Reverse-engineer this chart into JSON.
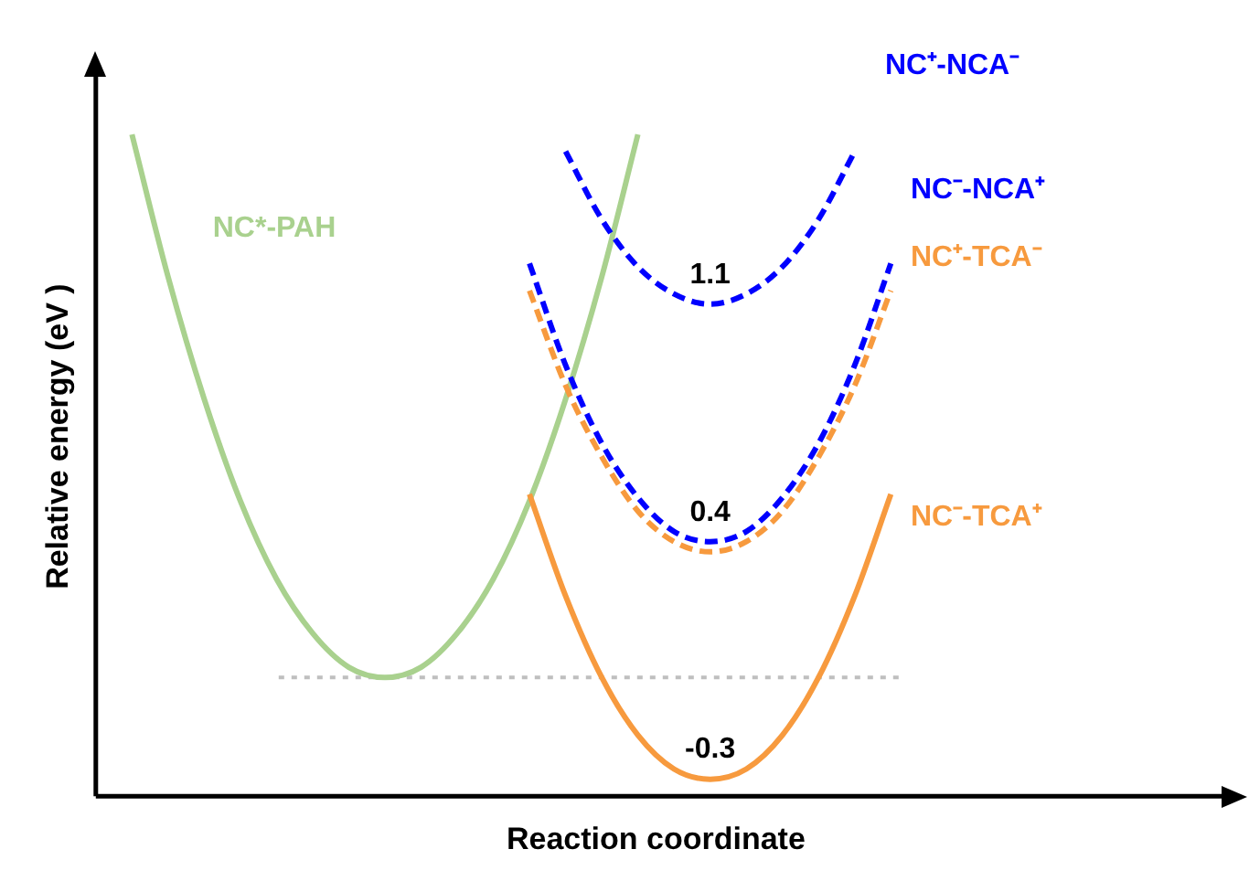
{
  "chart_data": {
    "type": "line",
    "xlabel": "Reaction coordinate",
    "ylabel": "Relative energy (eV )",
    "categories": [
      null,
      null,
      null,
      null,
      null,
      null,
      null,
      null,
      null,
      null,
      null,
      null,
      null,
      null,
      null,
      null,
      null,
      null,
      null,
      null,
      null,
      null,
      null,
      null,
      null,
      null,
      null,
      null,
      null,
      null,
      null,
      null
    ],
    "ylim": [
      -0.35,
      1.77
    ],
    "tick_labels": false,
    "grid": false,
    "legend": false,
    "marker": "none",
    "ref_lines": [
      {
        "axis": "y",
        "value": 0,
        "color": "#bfbfbf",
        "line_style": "dotted"
      }
    ],
    "series": [
      {
        "name": "NC*-PAH",
        "color": "#a9d18e",
        "line_style": "solid",
        "values": [
          null,
          1.6,
          1.18,
          0.82,
          0.52,
          0.29,
          0.13,
          0.03,
          0,
          0.03,
          0.13,
          0.29,
          0.52,
          0.82,
          1.18,
          1.6,
          null,
          null,
          null,
          null,
          null,
          null,
          null,
          null,
          null,
          null,
          null,
          null,
          null,
          null,
          null,
          null
        ]
      },
      {
        "name": "NC⁻-TCA⁺",
        "color": "#f79a3e",
        "line_style": "solid",
        "values": [
          null,
          null,
          null,
          null,
          null,
          null,
          null,
          null,
          null,
          null,
          null,
          null,
          0.54,
          0.24,
          0.0,
          -0.17,
          -0.27,
          -0.3,
          -0.27,
          -0.17,
          0.0,
          0.24,
          0.54,
          null,
          null,
          null,
          null,
          null,
          null,
          null,
          null,
          null
        ],
        "value_labels": [
          null,
          null,
          null,
          null,
          null,
          null,
          null,
          null,
          null,
          null,
          null,
          null,
          null,
          null,
          null,
          null,
          null,
          "-0.3",
          null,
          null,
          null,
          null,
          null,
          null,
          null,
          null,
          null,
          null,
          null,
          null,
          null,
          null
        ]
      },
      {
        "name": "NC⁺-TCA⁻",
        "color": "#f79a3e",
        "line_style": "dashed",
        "values": [
          null,
          null,
          null,
          null,
          null,
          null,
          null,
          null,
          null,
          null,
          null,
          null,
          1.14,
          0.86,
          0.65,
          0.49,
          0.4,
          0.37,
          0.4,
          0.49,
          0.65,
          0.86,
          1.14,
          null,
          null,
          null,
          null,
          null,
          null,
          null,
          null,
          null
        ]
      },
      {
        "name": "NC⁻-NCA⁺",
        "color": "#0000ff",
        "line_style": "dashed",
        "values": [
          null,
          null,
          null,
          null,
          null,
          null,
          null,
          null,
          null,
          null,
          null,
          null,
          1.22,
          0.92,
          0.69,
          0.53,
          0.43,
          0.4,
          0.43,
          0.53,
          0.69,
          0.92,
          1.22,
          null,
          null,
          null,
          null,
          null,
          null,
          null,
          null,
          null
        ],
        "value_labels": [
          null,
          null,
          null,
          null,
          null,
          null,
          null,
          null,
          null,
          null,
          null,
          null,
          null,
          null,
          null,
          null,
          null,
          "0.4",
          null,
          null,
          null,
          null,
          null,
          null,
          null,
          null,
          null,
          null,
          null,
          null,
          null,
          null
        ]
      },
      {
        "name": "NC⁺-NCA⁻",
        "color": "#0000ff",
        "line_style": "dashed",
        "values": [
          null,
          null,
          null,
          null,
          null,
          null,
          null,
          null,
          null,
          null,
          null,
          null,
          null,
          1.55,
          1.35,
          1.21,
          1.13,
          1.1,
          1.13,
          1.21,
          1.35,
          1.55,
          null,
          null,
          null,
          null,
          null,
          null,
          null,
          null,
          null,
          null
        ],
        "value_labels": [
          null,
          null,
          null,
          null,
          null,
          null,
          null,
          null,
          null,
          null,
          null,
          null,
          null,
          null,
          null,
          null,
          null,
          "1.1",
          null,
          null,
          null,
          null,
          null,
          null,
          null,
          null,
          null,
          null,
          null,
          null,
          null,
          null
        ]
      }
    ]
  }
}
